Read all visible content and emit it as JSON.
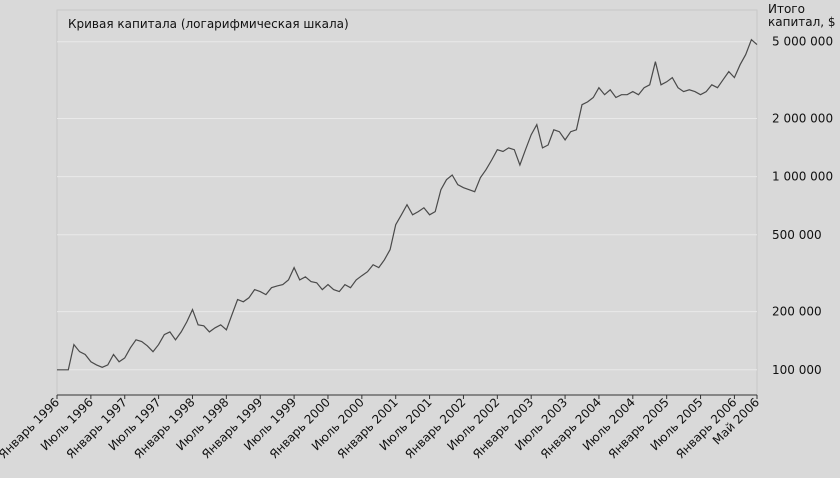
{
  "chart_data": {
    "type": "line",
    "title": "Кривая капитала (логарифмическая шкала)",
    "y_label": "Итого капитал, $",
    "log_scale": true,
    "grid": true,
    "xlim": [
      "1996-01",
      "2006-05"
    ],
    "ylim": [
      74000,
      7300000
    ],
    "xticks": [
      {
        "value": "1996-01",
        "label": "Январь 1996"
      },
      {
        "value": "1996-07",
        "label": "Июль 1996"
      },
      {
        "value": "1997-01",
        "label": "Январь 1997"
      },
      {
        "value": "1997-07",
        "label": "Июль 1997"
      },
      {
        "value": "1998-01",
        "label": "Январь 1998"
      },
      {
        "value": "1998-07",
        "label": "Июль 1998"
      },
      {
        "value": "1999-01",
        "label": "Январь 1999"
      },
      {
        "value": "1999-07",
        "label": "Июль 1999"
      },
      {
        "value": "2000-01",
        "label": "Январь 2000"
      },
      {
        "value": "2000-07",
        "label": "Июль 2000"
      },
      {
        "value": "2001-01",
        "label": "Январь 2001"
      },
      {
        "value": "2001-07",
        "label": "Июль 2001"
      },
      {
        "value": "2002-01",
        "label": "Январь 2002"
      },
      {
        "value": "2002-07",
        "label": "Июль 2002"
      },
      {
        "value": "2003-01",
        "label": "Январь 2003"
      },
      {
        "value": "2003-07",
        "label": "Июль 2003"
      },
      {
        "value": "2004-01",
        "label": "Январь 2004"
      },
      {
        "value": "2004-07",
        "label": "Июль 2004"
      },
      {
        "value": "2005-01",
        "label": "Январь 2005"
      },
      {
        "value": "2005-07",
        "label": "Июль 2005"
      },
      {
        "value": "2006-01",
        "label": "Январь 2006"
      },
      {
        "value": "2006-05",
        "label": "Май 2006"
      }
    ],
    "yticks": [
      {
        "value": 100000,
        "label": "100 000"
      },
      {
        "value": 200000,
        "label": "200 000"
      },
      {
        "value": 500000,
        "label": "500 000"
      },
      {
        "value": 1000000,
        "label": "1 000 000"
      },
      {
        "value": 2000000,
        "label": "2 000 000"
      },
      {
        "value": 5000000,
        "label": "5 000 000"
      }
    ],
    "x": [
      "1996-01",
      "1996-02",
      "1996-03",
      "1996-04",
      "1996-05",
      "1996-06",
      "1996-07",
      "1996-08",
      "1996-09",
      "1996-10",
      "1996-11",
      "1996-12",
      "1997-01",
      "1997-02",
      "1997-03",
      "1997-04",
      "1997-05",
      "1997-06",
      "1997-07",
      "1997-08",
      "1997-09",
      "1997-10",
      "1997-11",
      "1997-12",
      "1998-01",
      "1998-02",
      "1998-03",
      "1998-04",
      "1998-05",
      "1998-06",
      "1998-07",
      "1998-08",
      "1998-09",
      "1998-10",
      "1998-11",
      "1998-12",
      "1999-01",
      "1999-02",
      "1999-03",
      "1999-04",
      "1999-05",
      "1999-06",
      "1999-07",
      "1999-08",
      "1999-09",
      "1999-10",
      "1999-11",
      "1999-12",
      "2000-01",
      "2000-02",
      "2000-03",
      "2000-04",
      "2000-05",
      "2000-06",
      "2000-07",
      "2000-08",
      "2000-09",
      "2000-10",
      "2000-11",
      "2000-12",
      "2001-01",
      "2001-02",
      "2001-03",
      "2001-04",
      "2001-05",
      "2001-06",
      "2001-07",
      "2001-08",
      "2001-09",
      "2001-10",
      "2001-11",
      "2001-12",
      "2002-01",
      "2002-02",
      "2002-03",
      "2002-04",
      "2002-05",
      "2002-06",
      "2002-07",
      "2002-08",
      "2002-09",
      "2002-10",
      "2002-11",
      "2002-12",
      "2003-01",
      "2003-02",
      "2003-03",
      "2003-04",
      "2003-05",
      "2003-06",
      "2003-07",
      "2003-08",
      "2003-09",
      "2003-10",
      "2003-11",
      "2003-12",
      "2004-01",
      "2004-02",
      "2004-03",
      "2004-04",
      "2004-05",
      "2004-06",
      "2004-07",
      "2004-08",
      "2004-09",
      "2004-10",
      "2004-11",
      "2004-12",
      "2005-01",
      "2005-02",
      "2005-03",
      "2005-04",
      "2005-05",
      "2005-06",
      "2005-07",
      "2005-08",
      "2005-09",
      "2005-10",
      "2005-11",
      "2005-12",
      "2006-01",
      "2006-02",
      "2006-03",
      "2006-04",
      "2006-05"
    ],
    "series": [
      {
        "color": "#4a4a4a",
        "values": [
          100000,
          100000,
          100000,
          135000,
          124000,
          120000,
          110000,
          106000,
          103000,
          106000,
          120000,
          110000,
          115000,
          130000,
          143000,
          140000,
          133000,
          124000,
          135000,
          152000,
          157000,
          143000,
          157000,
          177000,
          205000,
          171000,
          169000,
          157000,
          165000,
          171000,
          161000,
          193000,
          231000,
          225000,
          236000,
          260000,
          254000,
          245000,
          266000,
          272000,
          276000,
          292000,
          338000,
          292000,
          303000,
          286000,
          282000,
          260000,
          276000,
          260000,
          254000,
          276000,
          266000,
          292000,
          307000,
          322000,
          350000,
          338000,
          371000,
          419000,
          564000,
          635000,
          716000,
          635000,
          659000,
          690000,
          635000,
          659000,
          856000,
          965000,
          1020000,
          909000,
          877000,
          856000,
          836000,
          988000,
          1087000,
          1220000,
          1380000,
          1350000,
          1410000,
          1380000,
          1150000,
          1380000,
          1650000,
          1860000,
          1410000,
          1460000,
          1750000,
          1710000,
          1550000,
          1710000,
          1750000,
          2360000,
          2440000,
          2570000,
          2890000,
          2660000,
          2820000,
          2570000,
          2660000,
          2660000,
          2760000,
          2660000,
          2890000,
          2990000,
          3940000,
          2990000,
          3100000,
          3260000,
          2890000,
          2760000,
          2820000,
          2760000,
          2660000,
          2760000,
          2990000,
          2890000,
          3180000,
          3500000,
          3260000,
          3800000,
          4290000,
          5120000,
          4830000
        ]
      }
    ]
  }
}
